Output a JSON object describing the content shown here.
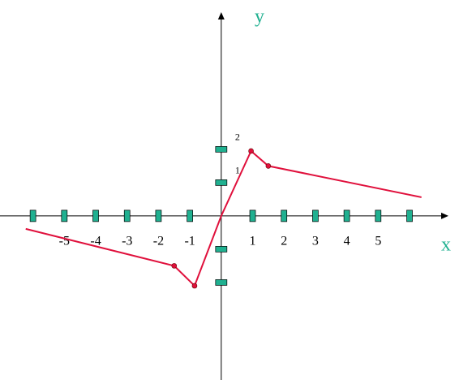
{
  "chart_data": {
    "type": "line",
    "x_label": "x",
    "y_label": "y",
    "xlim": [
      -7.05,
      7.24
    ],
    "ylim": [
      -4.93,
      6.12
    ],
    "xticks": [
      -5,
      -4,
      -3,
      -2,
      -1,
      1,
      2,
      3,
      4,
      5
    ],
    "xtick_marks": [
      -6,
      -5,
      -4,
      -3,
      -2,
      -1,
      1,
      2,
      3,
      4,
      5,
      6
    ],
    "yticks": [
      1,
      2
    ],
    "ytick_marks": [
      -2,
      -1,
      1,
      2
    ],
    "tick_color": "#20b090",
    "series": [
      {
        "type": "line",
        "color": "#e0103c",
        "x": [
          -6.23,
          -1.5,
          -0.85,
          0,
          0.95,
          1.5,
          6.38
        ],
        "values": [
          -0.39,
          -1.5,
          -2.1,
          0,
          1.95,
          1.5,
          0.56
        ]
      },
      {
        "type": "scatter",
        "color": "#e0103c",
        "x": [
          -1.5,
          -0.85,
          0.95,
          1.5
        ],
        "values": [
          -1.5,
          -2.1,
          1.95,
          1.5
        ]
      }
    ]
  }
}
